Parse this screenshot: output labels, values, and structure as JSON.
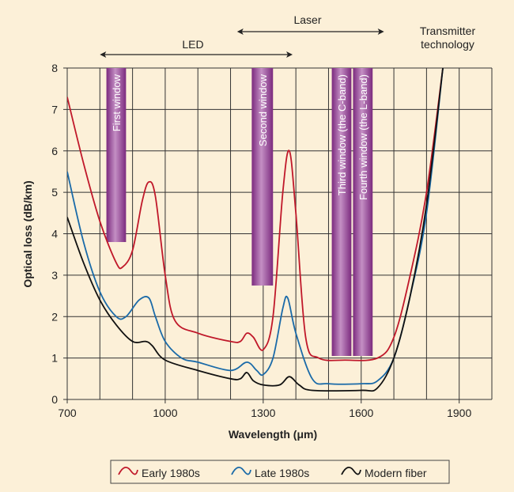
{
  "chart_data": {
    "type": "line",
    "xlabel": "Wavelength (μm)",
    "ylabel": "Optical loss (dB/km)",
    "xlim": [
      700,
      2000
    ],
    "ylim": [
      0,
      8
    ],
    "xticks": [
      700,
      1000,
      1300,
      1600,
      1900
    ],
    "yticks": [
      0,
      1,
      2,
      3,
      4,
      5,
      6,
      7,
      8
    ],
    "grid": "vertical every 100, horizontal every 1",
    "legend_position": "bottom",
    "series": [
      {
        "name": "Early 1980s",
        "color": "#c0182a",
        "x": [
          700,
          750,
          800,
          850,
          870,
          900,
          930,
          950,
          970,
          1000,
          1030,
          1100,
          1200,
          1230,
          1250,
          1270,
          1300,
          1330,
          1360,
          1380,
          1400,
          1430,
          1470,
          1550,
          1650,
          1700,
          1750,
          1800,
          1850
        ],
        "y": [
          7.3,
          5.7,
          4.3,
          3.3,
          3.2,
          3.6,
          4.8,
          5.25,
          4.9,
          3.0,
          1.9,
          1.6,
          1.4,
          1.4,
          1.6,
          1.5,
          1.2,
          2.0,
          5.0,
          6.0,
          4.5,
          1.5,
          1.0,
          0.95,
          1.0,
          1.5,
          3.0,
          5.0,
          8.0
        ]
      },
      {
        "name": "Late 1980s",
        "color": "#1a6aa8",
        "x": [
          700,
          750,
          800,
          850,
          880,
          920,
          950,
          970,
          1000,
          1050,
          1100,
          1200,
          1250,
          1280,
          1300,
          1330,
          1360,
          1375,
          1400,
          1450,
          1500,
          1600,
          1650,
          1700,
          1750,
          1800,
          1850
        ],
        "y": [
          5.5,
          3.8,
          2.6,
          2.0,
          2.0,
          2.4,
          2.45,
          2.0,
          1.4,
          1.0,
          0.9,
          0.7,
          0.9,
          0.7,
          0.6,
          1.0,
          2.2,
          2.45,
          1.6,
          0.5,
          0.38,
          0.38,
          0.45,
          1.0,
          2.5,
          4.5,
          8.0
        ]
      },
      {
        "name": "Modern fiber",
        "color": "#111111",
        "x": [
          700,
          750,
          800,
          850,
          900,
          940,
          960,
          1000,
          1100,
          1200,
          1230,
          1250,
          1270,
          1300,
          1350,
          1380,
          1410,
          1450,
          1600,
          1650,
          1700,
          1750,
          1800,
          1850
        ],
        "y": [
          4.4,
          3.3,
          2.4,
          1.8,
          1.4,
          1.4,
          1.3,
          0.95,
          0.7,
          0.5,
          0.5,
          0.65,
          0.45,
          0.35,
          0.35,
          0.55,
          0.35,
          0.22,
          0.22,
          0.28,
          1.0,
          2.5,
          4.7,
          8.0
        ]
      }
    ],
    "windows": [
      {
        "label": "First window",
        "x": [
          820,
          880
        ],
        "y_bottom": 3.8
      },
      {
        "label": "Second window",
        "x": [
          1265,
          1330
        ],
        "y_bottom": 2.75
      },
      {
        "label": "Third window (the C-band)",
        "x": [
          1510,
          1570
        ],
        "y_bottom": 1.05
      },
      {
        "label": "Fourth window (the L-band)",
        "x": [
          1575,
          1635
        ],
        "y_bottom": 1.05
      }
    ],
    "annotations": {
      "led": {
        "label": "LED",
        "range": [
          800,
          1390
        ]
      },
      "laser": {
        "label": "Laser",
        "range": [
          1220,
          1670
        ]
      },
      "transmitter": [
        "Transmitter",
        "technology"
      ]
    }
  }
}
